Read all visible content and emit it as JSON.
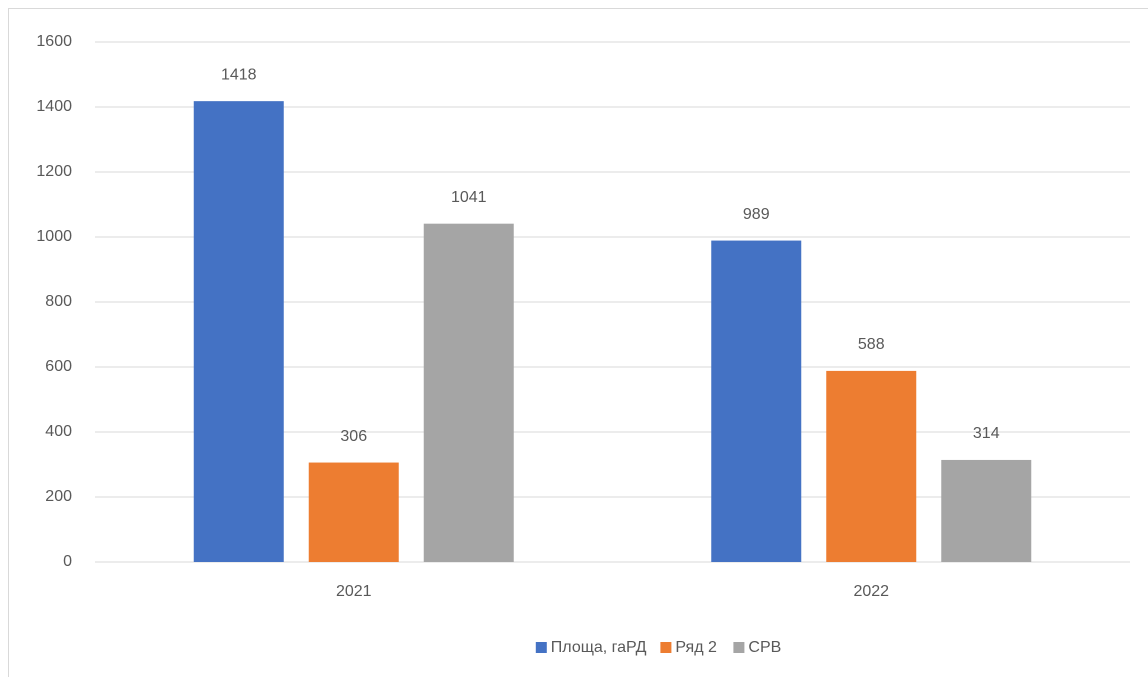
{
  "chart_data": {
    "type": "bar",
    "categories": [
      "2021",
      "2022"
    ],
    "series": [
      {
        "name": "Площа, гаРД",
        "color": "#4472c4",
        "values": [
          1418,
          989
        ]
      },
      {
        "name": "Ряд 2",
        "color": "#ed7d31",
        "values": [
          306,
          588
        ]
      },
      {
        "name": "СРВ",
        "color": "#a5a5a5",
        "values": [
          1041,
          314
        ]
      }
    ],
    "ylim": [
      0,
      1600
    ],
    "yticks": [
      0,
      200,
      400,
      600,
      800,
      1000,
      1200,
      1400,
      1600
    ],
    "grid": true,
    "legend": "bottom"
  }
}
